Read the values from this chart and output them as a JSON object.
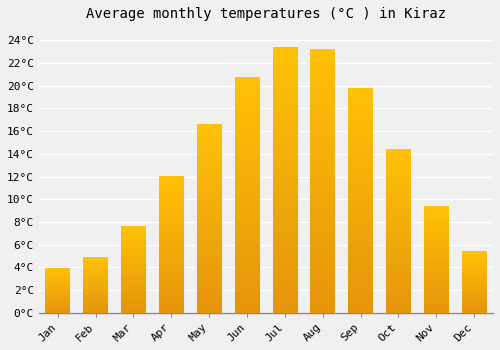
{
  "title": "Average monthly temperatures (°C ) in Kiraz",
  "months": [
    "Jan",
    "Feb",
    "Mar",
    "Apr",
    "May",
    "Jun",
    "Jul",
    "Aug",
    "Sep",
    "Oct",
    "Nov",
    "Dec"
  ],
  "values": [
    3.9,
    4.9,
    7.6,
    12.0,
    16.6,
    20.8,
    23.4,
    23.2,
    19.8,
    14.4,
    9.4,
    5.4
  ],
  "bar_color": "#FFC107",
  "bar_color_dark": "#E6950A",
  "ylim": [
    0,
    25
  ],
  "yticks": [
    0,
    2,
    4,
    6,
    8,
    10,
    12,
    14,
    16,
    18,
    20,
    22,
    24
  ],
  "ytick_labels": [
    "0°C",
    "2°C",
    "4°C",
    "6°C",
    "8°C",
    "10°C",
    "12°C",
    "14°C",
    "16°C",
    "18°C",
    "20°C",
    "22°C",
    "24°C"
  ],
  "background_color": "#f0f0f0",
  "grid_color": "#ffffff",
  "title_fontsize": 10,
  "tick_fontsize": 8,
  "font_family": "monospace"
}
